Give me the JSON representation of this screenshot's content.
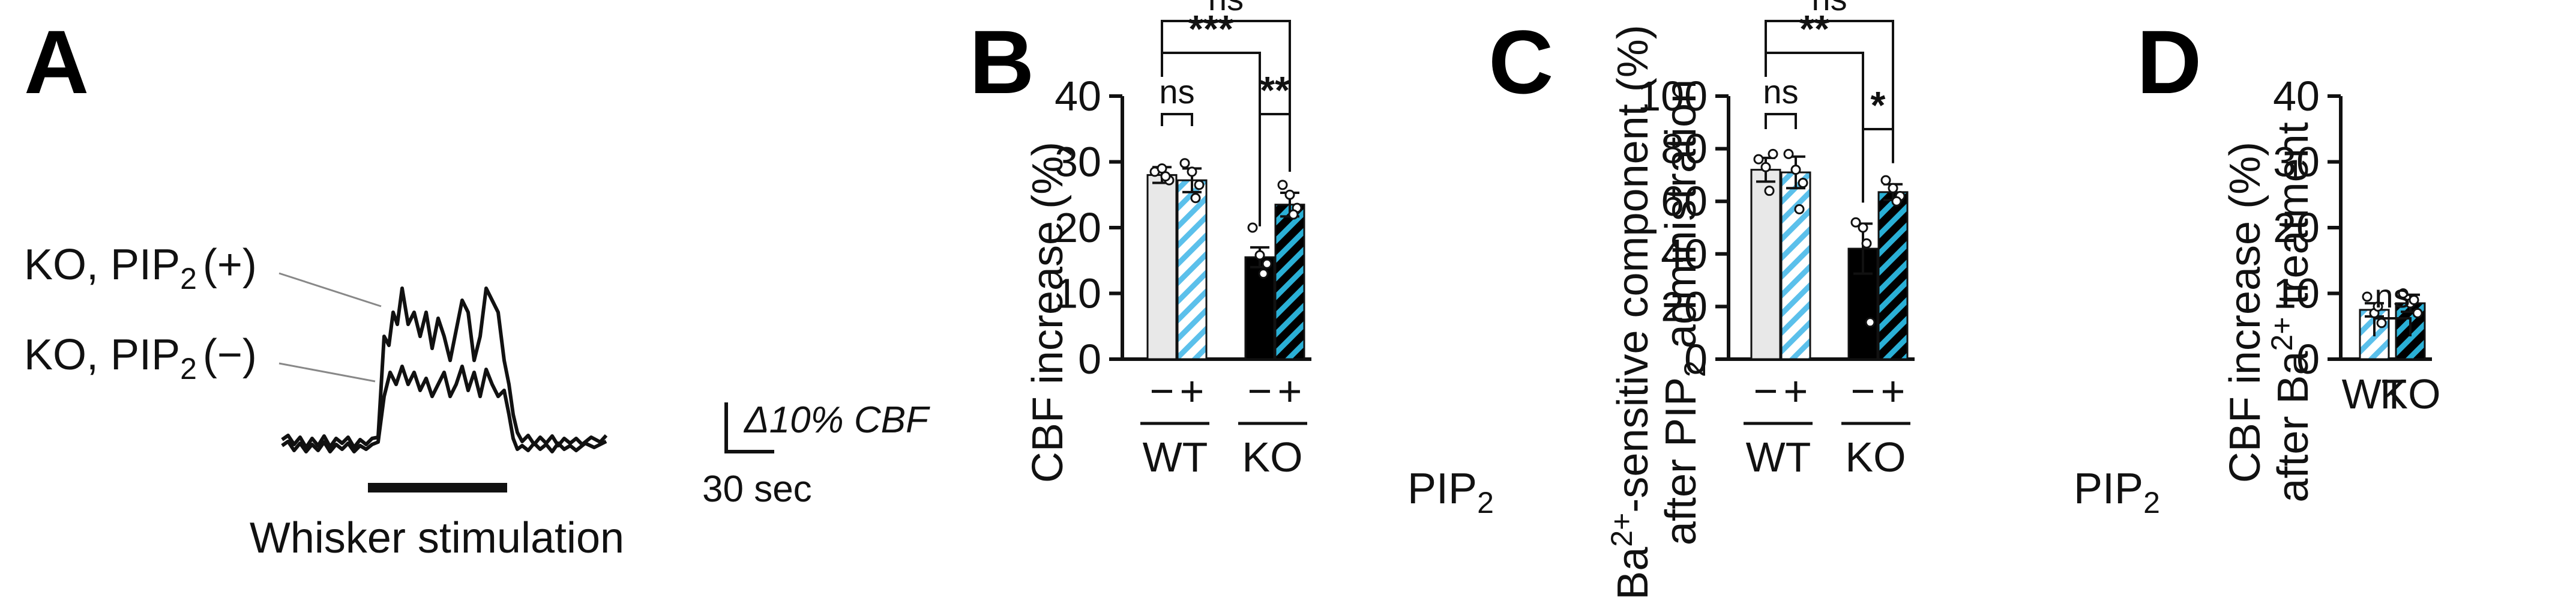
{
  "figure": {
    "panel_a_letter": "A",
    "panel_b_letter": "B",
    "panel_c_letter": "C",
    "panel_d_letter": "D"
  },
  "panel_a": {
    "trace_plus_prefix": "KO, PIP",
    "trace_plus_sub": "2",
    "trace_plus_suffix": "(+)",
    "trace_minus_prefix": "KO, PIP",
    "trace_minus_sub": "2",
    "trace_minus_suffix": "(−)",
    "scale_y_label": "Δ10% CBF",
    "scale_x_label": "30 sec",
    "stim_label": "Whisker stimulation"
  },
  "colors": {
    "wt_minus": "#e8e8e8",
    "wt_plus_stripe": "#5bc0eb",
    "ko_minus": "#000000",
    "ko_plus_stripe": "#2ab0d6",
    "ink": "#111111"
  },
  "chart_data": [
    {
      "id": "B",
      "type": "bar",
      "ylabel": "CBF increase (%)",
      "ylim": [
        0,
        40
      ],
      "yticks": [
        0,
        10,
        20,
        30,
        40
      ],
      "categories": [
        "−",
        "+",
        "−",
        "+"
      ],
      "groups": [
        "WT",
        "KO"
      ],
      "treatment_prefix": "PIP",
      "treatment_sub": "2",
      "values": [
        28.0,
        27.2,
        15.5,
        23.5
      ],
      "errors": [
        1.2,
        1.8,
        1.5,
        1.8
      ],
      "points": [
        [
          28.5,
          29.0,
          27.2,
          27.8
        ],
        [
          29.8,
          28.5,
          26.5,
          24.5
        ],
        [
          20.0,
          15.8,
          14.5,
          13.0
        ],
        [
          26.5,
          25.0,
          23.0,
          22.0
        ]
      ],
      "comparisons": [
        {
          "a": 0,
          "b": 1,
          "label": "ns"
        },
        {
          "a": 2,
          "b": 3,
          "label": "**"
        },
        {
          "a": 0,
          "b": 2,
          "label": "***"
        },
        {
          "a": 0,
          "b": 3,
          "label": "ns"
        }
      ]
    },
    {
      "id": "C",
      "type": "bar",
      "ylabel_line1_prefix": "Ba",
      "ylabel_line1_sup": "2+",
      "ylabel_line1_suffix": "-sensitive component (%)",
      "ylabel_line2_prefix": "after PIP",
      "ylabel_line2_sub": "2",
      "ylabel_line2_suffix": " administration",
      "ylim": [
        0,
        100
      ],
      "yticks": [
        0,
        20,
        40,
        60,
        80,
        100
      ],
      "categories": [
        "−",
        "+",
        "−",
        "+"
      ],
      "groups": [
        "WT",
        "KO"
      ],
      "treatment_prefix": "PIP",
      "treatment_sub": "2",
      "values": [
        72.0,
        71.0,
        42.0,
        63.5
      ],
      "errors": [
        4.5,
        6.0,
        9.5,
        3.0
      ],
      "points": [
        [
          76.0,
          73.0,
          78.0,
          64.0
        ],
        [
          78.0,
          72.0,
          67.0,
          57.0
        ],
        [
          52.0,
          50.0,
          14.0,
          44.0
        ],
        [
          68.0,
          65.0,
          62.0,
          60.0
        ]
      ],
      "comparisons": [
        {
          "a": 0,
          "b": 1,
          "label": "ns"
        },
        {
          "a": 2,
          "b": 3,
          "label": "*"
        },
        {
          "a": 0,
          "b": 2,
          "label": "**"
        },
        {
          "a": 0,
          "b": 3,
          "label": "ns"
        }
      ]
    },
    {
      "id": "D",
      "type": "bar",
      "ylabel_line1": "CBF increase (%)",
      "ylabel_line2_prefix": "after Ba",
      "ylabel_line2_sup": "2+",
      "ylabel_line2_suffix": " treatment",
      "ylim": [
        0,
        40
      ],
      "yticks": [
        0,
        10,
        20,
        30,
        40
      ],
      "categories": [
        "WT",
        "KO"
      ],
      "values": [
        7.5,
        8.5
      ],
      "errors": [
        1.0,
        1.3
      ],
      "points": [
        [
          9.5,
          7.0,
          5.5,
          8.0
        ],
        [
          10.0,
          8.5,
          7.0,
          9.0
        ]
      ],
      "comparisons": [
        {
          "a": 0,
          "b": 1,
          "label": "ns"
        }
      ]
    }
  ]
}
